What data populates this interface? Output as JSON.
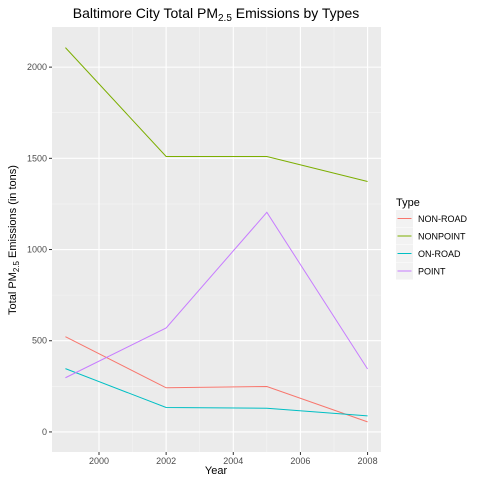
{
  "chart_data": {
    "type": "line",
    "title": "Baltimore City Total PM2.5 Emissions by Types",
    "title_parts": {
      "before": "Baltimore City Total PM",
      "subscript": "2.5",
      "after": " Emissions by Types"
    },
    "xlabel": "Year",
    "ylabel": "Total PM2.5 Emissions (in tons)",
    "ylabel_parts": {
      "before": "Total PM",
      "subscript": "2.5",
      "after": " Emissions (in tons)"
    },
    "x": [
      1999,
      2002,
      2005,
      2008
    ],
    "xlim": [
      1998.6,
      2008.4
    ],
    "ylim": [
      -110,
      2220
    ],
    "xticks": [
      2000,
      2002,
      2004,
      2006,
      2008
    ],
    "xtick_labels": [
      "2000",
      "2002",
      "2004",
      "2006",
      "2008"
    ],
    "yticks": [
      0,
      500,
      1000,
      1500,
      2000
    ],
    "ytick_labels": [
      "0",
      "500",
      "1000",
      "1500",
      "2000"
    ],
    "grid": true,
    "legend": {
      "title": "Type",
      "placement": "right"
    },
    "series": [
      {
        "name": "NON-ROAD",
        "color": "#F8766D",
        "values": [
          522,
          242,
          249,
          55
        ]
      },
      {
        "name": "NONPOINT",
        "color": "#7CAE00",
        "values": [
          2107,
          1510,
          1510,
          1373
        ]
      },
      {
        "name": "ON-ROAD",
        "color": "#00BFC4",
        "values": [
          347,
          134,
          130,
          88
        ]
      },
      {
        "name": "POINT",
        "color": "#C77CFF",
        "values": [
          297,
          570,
          1204,
          345
        ]
      }
    ]
  }
}
